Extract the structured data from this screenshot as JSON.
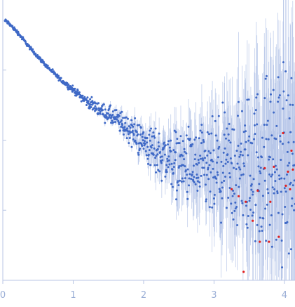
{
  "chart_data": {
    "type": "scatter",
    "title": "",
    "xlabel": "",
    "ylabel": "",
    "xlim": [
      0,
      4.15
    ],
    "ylim": [
      0,
      4
    ],
    "x_ticks": [
      0,
      1,
      2,
      3,
      4
    ],
    "x_tick_labels": [
      "0",
      "1",
      "2",
      "3",
      "4"
    ],
    "y_ticks": [
      1,
      2,
      3
    ],
    "y_tick_labels": [],
    "grid": false,
    "legend": "none",
    "colors": {
      "points": "#3f69c6",
      "outliers": "#e02020",
      "error_bars": "#aebfe6"
    },
    "curve": [
      {
        "x": 0.05,
        "y": 3.7
      },
      {
        "x": 0.2,
        "y": 3.55
      },
      {
        "x": 0.4,
        "y": 3.3
      },
      {
        "x": 0.6,
        "y": 3.08
      },
      {
        "x": 0.8,
        "y": 2.88
      },
      {
        "x": 1.0,
        "y": 2.72
      },
      {
        "x": 1.2,
        "y": 2.55
      },
      {
        "x": 1.4,
        "y": 2.42
      },
      {
        "x": 1.6,
        "y": 2.3
      },
      {
        "x": 1.8,
        "y": 2.15
      },
      {
        "x": 2.0,
        "y": 1.97
      },
      {
        "x": 2.2,
        "y": 1.82
      },
      {
        "x": 2.4,
        "y": 1.72
      },
      {
        "x": 2.6,
        "y": 1.64
      },
      {
        "x": 2.8,
        "y": 1.55
      },
      {
        "x": 3.0,
        "y": 1.53
      },
      {
        "x": 3.2,
        "y": 1.55
      },
      {
        "x": 3.4,
        "y": 1.58
      },
      {
        "x": 3.6,
        "y": 1.63
      },
      {
        "x": 3.8,
        "y": 1.67
      },
      {
        "x": 4.0,
        "y": 1.7
      },
      {
        "x": 4.15,
        "y": 1.72
      }
    ],
    "outlier_points": [
      {
        "x": 3.25,
        "y": 1.3
      },
      {
        "x": 3.35,
        "y": 1.2
      },
      {
        "x": 3.45,
        "y": 1.12
      },
      {
        "x": 3.42,
        "y": 0.12
      },
      {
        "x": 3.55,
        "y": 0.85
      },
      {
        "x": 3.62,
        "y": 1.28
      },
      {
        "x": 3.65,
        "y": 0.55
      },
      {
        "x": 3.72,
        "y": 1.6
      },
      {
        "x": 3.78,
        "y": 0.55
      },
      {
        "x": 3.8,
        "y": 1.12
      },
      {
        "x": 3.85,
        "y": 1.62
      },
      {
        "x": 3.92,
        "y": 0.62
      },
      {
        "x": 3.98,
        "y": 2.1
      },
      {
        "x": 4.02,
        "y": 1.35
      },
      {
        "x": 4.05,
        "y": 1.55
      },
      {
        "x": 4.08,
        "y": 1.3
      },
      {
        "x": 4.1,
        "y": 1.85
      },
      {
        "x": 4.12,
        "y": 1.58
      }
    ]
  }
}
